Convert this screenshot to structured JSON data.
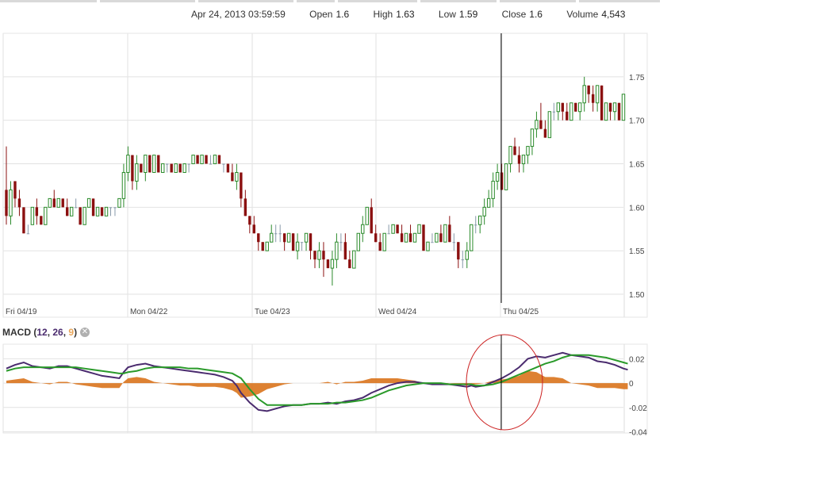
{
  "header": {
    "datetime": "Apr 24, 2013 03:59:59",
    "open_label": "Open",
    "open_value": "1.6",
    "high_label": "High",
    "high_value": "1.63",
    "low_label": "Low",
    "low_value": "1.59",
    "close_label": "Close",
    "close_value": "1.6",
    "volume_label": "Volume",
    "volume_value": "4,543"
  },
  "macd_panel": {
    "title": "MACD",
    "param_fast": "12",
    "param_slow": "26",
    "param_signal": "9",
    "close_icon": "close-icon"
  },
  "colors": {
    "up": "#2a8a2a",
    "down": "#8b1010",
    "flat": "#8899aa",
    "macd_line": "#4a2b6e",
    "signal_line": "#2a9a2a",
    "histogram": "#d9731c",
    "annotation_circle": "#cc2222",
    "grid": "#e2e2e2",
    "crosshair": "#000000"
  },
  "chart_data": [
    {
      "type": "candlestick",
      "x_ticks": [
        "Fri 04/19",
        "Mon 04/22",
        "Tue 04/23",
        "Wed 04/24",
        "Thu 04/25"
      ],
      "y_ticks": [
        "1.75",
        "1.70",
        "1.65",
        "1.60",
        "1.55",
        "1.50"
      ],
      "ylim": [
        1.49,
        1.8
      ],
      "grid": true,
      "crosshair_date": "Thu 04/25",
      "candles": [
        [
          1.62,
          1.67,
          1.58,
          1.59
        ],
        [
          1.59,
          1.63,
          1.58,
          1.62
        ],
        [
          1.63,
          1.63,
          1.6,
          1.61
        ],
        [
          1.61,
          1.62,
          1.59,
          1.6
        ],
        [
          1.6,
          1.6,
          1.57,
          1.57
        ],
        [
          1.57,
          1.58,
          1.57,
          1.57
        ],
        [
          1.58,
          1.6,
          1.58,
          1.6
        ],
        [
          1.6,
          1.61,
          1.58,
          1.59
        ],
        [
          1.59,
          1.59,
          1.58,
          1.58
        ],
        [
          1.58,
          1.6,
          1.58,
          1.6
        ],
        [
          1.6,
          1.61,
          1.6,
          1.61
        ],
        [
          1.61,
          1.62,
          1.6,
          1.6
        ],
        [
          1.6,
          1.61,
          1.6,
          1.61
        ],
        [
          1.61,
          1.61,
          1.6,
          1.6
        ],
        [
          1.6,
          1.61,
          1.59,
          1.59
        ],
        [
          1.59,
          1.6,
          1.59,
          1.6
        ],
        [
          1.6,
          1.61,
          1.6,
          1.6
        ],
        [
          1.6,
          1.6,
          1.58,
          1.58
        ],
        [
          1.58,
          1.6,
          1.58,
          1.6
        ],
        [
          1.6,
          1.61,
          1.6,
          1.61
        ],
        [
          1.61,
          1.61,
          1.59,
          1.59
        ],
        [
          1.59,
          1.6,
          1.59,
          1.6
        ],
        [
          1.6,
          1.6,
          1.59,
          1.59
        ],
        [
          1.59,
          1.6,
          1.59,
          1.6
        ],
        [
          1.6,
          1.6,
          1.59,
          1.6
        ],
        [
          1.6,
          1.6,
          1.59,
          1.6
        ],
        [
          1.6,
          1.61,
          1.6,
          1.61
        ],
        [
          1.61,
          1.65,
          1.6,
          1.64
        ],
        [
          1.64,
          1.67,
          1.63,
          1.66
        ],
        [
          1.66,
          1.66,
          1.62,
          1.63
        ],
        [
          1.63,
          1.66,
          1.62,
          1.65
        ],
        [
          1.65,
          1.65,
          1.64,
          1.64
        ],
        [
          1.64,
          1.66,
          1.63,
          1.66
        ],
        [
          1.66,
          1.66,
          1.64,
          1.64
        ],
        [
          1.64,
          1.66,
          1.64,
          1.66
        ],
        [
          1.66,
          1.66,
          1.64,
          1.64
        ],
        [
          1.64,
          1.65,
          1.64,
          1.65
        ],
        [
          1.65,
          1.65,
          1.64,
          1.65
        ],
        [
          1.65,
          1.65,
          1.64,
          1.64
        ],
        [
          1.64,
          1.65,
          1.64,
          1.65
        ],
        [
          1.65,
          1.65,
          1.64,
          1.64
        ],
        [
          1.64,
          1.65,
          1.64,
          1.65
        ],
        [
          1.65,
          1.65,
          1.64,
          1.65
        ],
        [
          1.65,
          1.66,
          1.65,
          1.66
        ],
        [
          1.66,
          1.66,
          1.65,
          1.65
        ],
        [
          1.65,
          1.66,
          1.65,
          1.66
        ],
        [
          1.66,
          1.66,
          1.65,
          1.65
        ],
        [
          1.65,
          1.66,
          1.65,
          1.65
        ],
        [
          1.65,
          1.66,
          1.65,
          1.66
        ],
        [
          1.66,
          1.66,
          1.65,
          1.65
        ],
        [
          1.65,
          1.65,
          1.64,
          1.65
        ],
        [
          1.65,
          1.65,
          1.64,
          1.64
        ],
        [
          1.64,
          1.65,
          1.63,
          1.63
        ],
        [
          1.63,
          1.65,
          1.62,
          1.64
        ],
        [
          1.64,
          1.64,
          1.6,
          1.61
        ],
        [
          1.61,
          1.62,
          1.59,
          1.59
        ],
        [
          1.59,
          1.59,
          1.57,
          1.58
        ],
        [
          1.58,
          1.59,
          1.57,
          1.57
        ],
        [
          1.57,
          1.57,
          1.55,
          1.56
        ],
        [
          1.56,
          1.56,
          1.55,
          1.55
        ],
        [
          1.55,
          1.56,
          1.55,
          1.56
        ],
        [
          1.56,
          1.58,
          1.56,
          1.57
        ],
        [
          1.57,
          1.58,
          1.56,
          1.57
        ],
        [
          1.57,
          1.58,
          1.56,
          1.57
        ],
        [
          1.57,
          1.57,
          1.55,
          1.56
        ],
        [
          1.56,
          1.57,
          1.56,
          1.57
        ],
        [
          1.57,
          1.57,
          1.55,
          1.55
        ],
        [
          1.55,
          1.57,
          1.54,
          1.56
        ],
        [
          1.56,
          1.56,
          1.55,
          1.56
        ],
        [
          1.56,
          1.57,
          1.55,
          1.57
        ],
        [
          1.57,
          1.57,
          1.54,
          1.55
        ],
        [
          1.55,
          1.55,
          1.53,
          1.54
        ],
        [
          1.54,
          1.56,
          1.53,
          1.55
        ],
        [
          1.55,
          1.56,
          1.52,
          1.54
        ],
        [
          1.54,
          1.54,
          1.53,
          1.53
        ],
        [
          1.53,
          1.55,
          1.51,
          1.54
        ],
        [
          1.54,
          1.57,
          1.53,
          1.56
        ],
        [
          1.56,
          1.57,
          1.55,
          1.56
        ],
        [
          1.56,
          1.57,
          1.54,
          1.54
        ],
        [
          1.54,
          1.55,
          1.53,
          1.53
        ],
        [
          1.53,
          1.55,
          1.53,
          1.55
        ],
        [
          1.55,
          1.57,
          1.55,
          1.57
        ],
        [
          1.57,
          1.59,
          1.56,
          1.58
        ],
        [
          1.58,
          1.6,
          1.58,
          1.6
        ],
        [
          1.6,
          1.61,
          1.57,
          1.57
        ],
        [
          1.57,
          1.58,
          1.56,
          1.56
        ],
        [
          1.56,
          1.57,
          1.55,
          1.55
        ],
        [
          1.55,
          1.57,
          1.55,
          1.57
        ],
        [
          1.57,
          1.58,
          1.57,
          1.57
        ],
        [
          1.57,
          1.58,
          1.57,
          1.58
        ],
        [
          1.58,
          1.58,
          1.57,
          1.57
        ],
        [
          1.57,
          1.58,
          1.56,
          1.56
        ],
        [
          1.56,
          1.57,
          1.56,
          1.57
        ],
        [
          1.57,
          1.58,
          1.56,
          1.56
        ],
        [
          1.56,
          1.57,
          1.56,
          1.57
        ],
        [
          1.57,
          1.58,
          1.57,
          1.58
        ],
        [
          1.58,
          1.58,
          1.55,
          1.55
        ],
        [
          1.55,
          1.56,
          1.55,
          1.56
        ],
        [
          1.56,
          1.57,
          1.56,
          1.56
        ],
        [
          1.56,
          1.57,
          1.56,
          1.57
        ],
        [
          1.57,
          1.58,
          1.56,
          1.56
        ],
        [
          1.56,
          1.58,
          1.56,
          1.58
        ],
        [
          1.58,
          1.59,
          1.56,
          1.56
        ],
        [
          1.56,
          1.57,
          1.55,
          1.56
        ],
        [
          1.56,
          1.56,
          1.53,
          1.54
        ],
        [
          1.54,
          1.55,
          1.53,
          1.54
        ],
        [
          1.54,
          1.56,
          1.53,
          1.55
        ],
        [
          1.55,
          1.58,
          1.55,
          1.58
        ],
        [
          1.58,
          1.59,
          1.57,
          1.58
        ],
        [
          1.58,
          1.59,
          1.57,
          1.59
        ],
        [
          1.59,
          1.61,
          1.58,
          1.6
        ],
        [
          1.6,
          1.62,
          1.6,
          1.61
        ],
        [
          1.61,
          1.64,
          1.6,
          1.63
        ],
        [
          1.63,
          1.65,
          1.62,
          1.64
        ],
        [
          1.64,
          1.65,
          1.62,
          1.62
        ],
        [
          1.62,
          1.65,
          1.62,
          1.65
        ],
        [
          1.65,
          1.67,
          1.64,
          1.67
        ],
        [
          1.67,
          1.68,
          1.66,
          1.66
        ],
        [
          1.66,
          1.67,
          1.64,
          1.65
        ],
        [
          1.65,
          1.66,
          1.64,
          1.66
        ],
        [
          1.66,
          1.67,
          1.65,
          1.67
        ],
        [
          1.67,
          1.69,
          1.66,
          1.69
        ],
        [
          1.69,
          1.71,
          1.68,
          1.7
        ],
        [
          1.7,
          1.72,
          1.69,
          1.69
        ],
        [
          1.69,
          1.7,
          1.68,
          1.68
        ],
        [
          1.68,
          1.71,
          1.68,
          1.71
        ],
        [
          1.71,
          1.72,
          1.7,
          1.71
        ],
        [
          1.71,
          1.72,
          1.7,
          1.72
        ],
        [
          1.72,
          1.72,
          1.7,
          1.71
        ],
        [
          1.71,
          1.72,
          1.7,
          1.7
        ],
        [
          1.7,
          1.72,
          1.7,
          1.72
        ],
        [
          1.72,
          1.72,
          1.71,
          1.71
        ],
        [
          1.71,
          1.72,
          1.7,
          1.72
        ],
        [
          1.72,
          1.75,
          1.71,
          1.74
        ],
        [
          1.74,
          1.74,
          1.72,
          1.73
        ],
        [
          1.73,
          1.74,
          1.71,
          1.72
        ],
        [
          1.72,
          1.74,
          1.71,
          1.74
        ],
        [
          1.74,
          1.74,
          1.7,
          1.7
        ],
        [
          1.7,
          1.72,
          1.7,
          1.72
        ],
        [
          1.72,
          1.72,
          1.7,
          1.71
        ],
        [
          1.71,
          1.72,
          1.7,
          1.72
        ],
        [
          1.72,
          1.72,
          1.7,
          1.7
        ],
        [
          1.7,
          1.73,
          1.7,
          1.73
        ]
      ]
    },
    {
      "type": "line",
      "title": "MACD (12, 26, 9)",
      "y_ticks": [
        "0.02",
        "0",
        "-0.02",
        "-0.04"
      ],
      "ylim": [
        -0.041,
        0.032
      ],
      "x": [
        0,
        2,
        4,
        6,
        8,
        10,
        12,
        14,
        16,
        18,
        20,
        22,
        24,
        26,
        27,
        28,
        30,
        32,
        34,
        36,
        38,
        40,
        42,
        44,
        46,
        48,
        50,
        52,
        53,
        54,
        56,
        58,
        60,
        62,
        64,
        66,
        68,
        70,
        72,
        74,
        76,
        78,
        80,
        82,
        84,
        86,
        88,
        90,
        92,
        94,
        96,
        98,
        100,
        102,
        104,
        106,
        107,
        108,
        110,
        112,
        114,
        116,
        118,
        120,
        122,
        124,
        126,
        128,
        130,
        132,
        134,
        136,
        138,
        140,
        142,
        143
      ],
      "series": [
        {
          "name": "MACD",
          "values": [
            0.012,
            0.015,
            0.017,
            0.014,
            0.013,
            0.012,
            0.014,
            0.014,
            0.012,
            0.01,
            0.008,
            0.006,
            0.005,
            0.004,
            0.009,
            0.013,
            0.015,
            0.016,
            0.014,
            0.013,
            0.012,
            0.011,
            0.01,
            0.009,
            0.008,
            0.007,
            0.005,
            0.002,
            -0.002,
            -0.008,
            -0.016,
            -0.022,
            -0.023,
            -0.021,
            -0.019,
            -0.018,
            -0.018,
            -0.017,
            -0.017,
            -0.016,
            -0.017,
            -0.015,
            -0.014,
            -0.012,
            -0.008,
            -0.005,
            -0.002,
            0.0,
            0.001,
            0.001,
            0.0,
            -0.001,
            -0.001,
            -0.001,
            -0.002,
            -0.003,
            -0.002,
            -0.003,
            -0.002,
            0.001,
            0.004,
            0.008,
            0.013,
            0.02,
            0.022,
            0.021,
            0.023,
            0.025,
            0.023,
            0.022,
            0.021,
            0.018,
            0.017,
            0.015,
            0.012,
            0.011
          ]
        },
        {
          "name": "Signal",
          "values": [
            0.01,
            0.012,
            0.013,
            0.013,
            0.013,
            0.013,
            0.013,
            0.013,
            0.013,
            0.012,
            0.011,
            0.01,
            0.009,
            0.008,
            0.008,
            0.009,
            0.01,
            0.012,
            0.013,
            0.013,
            0.013,
            0.013,
            0.012,
            0.012,
            0.011,
            0.01,
            0.009,
            0.008,
            0.006,
            0.004,
            -0.005,
            -0.013,
            -0.018,
            -0.018,
            -0.018,
            -0.018,
            -0.018,
            -0.017,
            -0.017,
            -0.017,
            -0.016,
            -0.016,
            -0.015,
            -0.014,
            -0.012,
            -0.009,
            -0.006,
            -0.004,
            -0.002,
            -0.001,
            0.0,
            0.0,
            0.0,
            -0.001,
            -0.001,
            -0.001,
            -0.001,
            -0.002,
            -0.002,
            -0.001,
            0.001,
            0.004,
            0.007,
            0.01,
            0.013,
            0.016,
            0.018,
            0.021,
            0.023,
            0.023,
            0.023,
            0.022,
            0.021,
            0.019,
            0.017,
            0.016
          ]
        }
      ]
    }
  ]
}
